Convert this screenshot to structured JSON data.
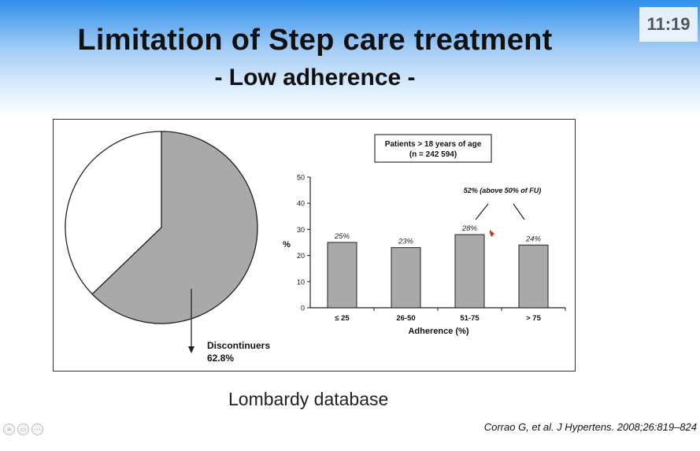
{
  "slide": {
    "title": "Limitation of Step care treatment",
    "subtitle": "- Low adherence -",
    "clock": "11:19",
    "caption": "Lombardy database",
    "citation": "Corrao G, et al. J Hypertens. 2008;26:819–824"
  },
  "controls": [
    "menu-icon",
    "camera-icon",
    "more-icon"
  ],
  "chart_data": [
    {
      "type": "pie",
      "slices": [
        {
          "label": "Discontinuers",
          "value": 62.8,
          "color": "#a9a9a9"
        },
        {
          "label": "",
          "value": 37.2,
          "color": "#ffffff"
        }
      ],
      "annotation": {
        "line1": "Discontinuers",
        "line2": "62.8%"
      }
    },
    {
      "type": "bar",
      "categories": [
        "≤ 25",
        "26-50",
        "51-75",
        "> 75"
      ],
      "values": [
        25,
        23,
        28,
        24
      ],
      "value_labels": [
        "25%",
        "23%",
        "28%",
        "24%"
      ],
      "xlabel": "Adherence (%)",
      "ylabel": "%",
      "ylim": [
        0,
        50
      ],
      "yticks": [
        0,
        10,
        20,
        30,
        40,
        50
      ],
      "bar_color": "#a9a9a9",
      "box": {
        "line1": "Patients > 18 years of age",
        "line2": "(n = 242 594)"
      },
      "annotation": "52% (above 50% of FU)"
    }
  ]
}
